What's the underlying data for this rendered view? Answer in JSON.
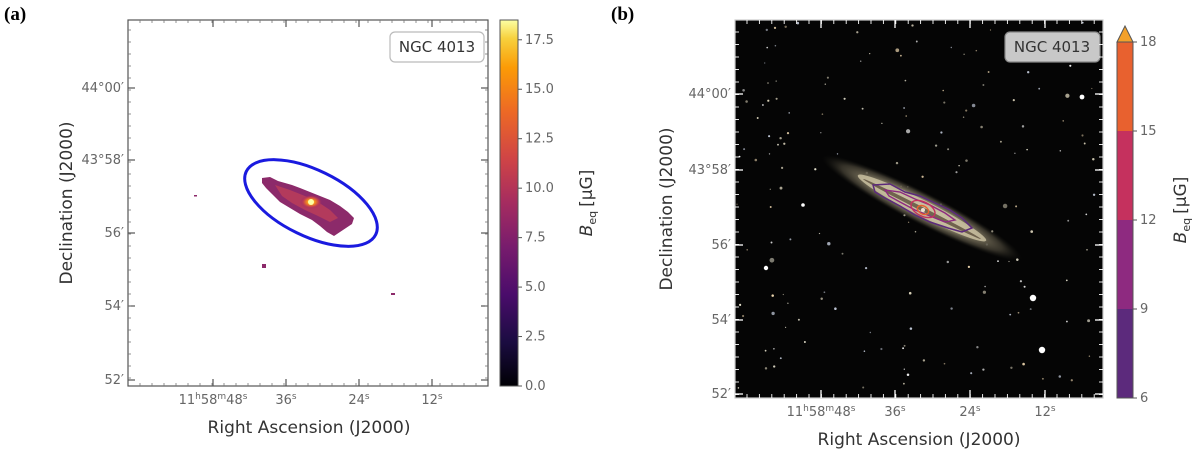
{
  "chart_data": [
    {
      "type": "image",
      "panel_label": "(a)",
      "object_label": "NGC 4013",
      "xlabel": "Right Ascension (J2000)",
      "ylabel": "Declination (J2000)",
      "x_ticks": [
        {
          "label_main": "11",
          "label_parts": [
            "h",
            "58",
            "m",
            "48",
            "s"
          ],
          "full": "11h58m48s"
        },
        {
          "label_main": "36",
          "label_parts": [
            "s"
          ],
          "full": "36s"
        },
        {
          "label_main": "24",
          "label_parts": [
            "s"
          ],
          "full": "24s"
        },
        {
          "label_main": "12",
          "label_parts": [
            "s"
          ],
          "full": "12s"
        }
      ],
      "y_ticks": [
        "44°00′",
        "43°58′",
        "56′",
        "54′",
        "52′"
      ],
      "colorbar": {
        "label": "B_eq [μG]",
        "label_main": "B",
        "label_sub": "eq",
        "label_unit": "[μG]",
        "ticks": [
          "0.0",
          "2.5",
          "5.0",
          "7.5",
          "10.0",
          "12.5",
          "15.0",
          "17.5"
        ],
        "range": [
          0,
          18.5
        ],
        "colormap": "inferno"
      },
      "overlay": "ellipse",
      "overlay_color": "#1a1adf"
    },
    {
      "type": "image",
      "panel_label": "(b)",
      "object_label": "NGC 4013",
      "xlabel": "Right Ascension (J2000)",
      "ylabel": "Declination (J2000)",
      "x_ticks": [
        {
          "label_main": "11",
          "label_parts": [
            "h",
            "58",
            "m",
            "48",
            "s"
          ],
          "full": "11h58m48s"
        },
        {
          "label_main": "36",
          "label_parts": [
            "s"
          ],
          "full": "36s"
        },
        {
          "label_main": "24",
          "label_parts": [
            "s"
          ],
          "full": "24s"
        },
        {
          "label_main": "12",
          "label_parts": [
            "s"
          ],
          "full": "12s"
        }
      ],
      "y_ticks": [
        "44°00′",
        "43°58′",
        "56′",
        "54′",
        "52′"
      ],
      "colorbar": {
        "label": "B_eq [μG]",
        "label_main": "B",
        "label_sub": "eq",
        "label_unit": "[μG]",
        "ticks": [
          "6",
          "9",
          "12",
          "15",
          "18"
        ],
        "range": [
          6,
          18
        ],
        "extend": "max",
        "levels": [
          {
            "from": 6,
            "to": 9,
            "color": "#5c2a7c"
          },
          {
            "from": 9,
            "to": 12,
            "color": "#8e2a80"
          },
          {
            "from": 12,
            "to": 15,
            "color": "#c5315e"
          },
          {
            "from": 15,
            "to": 18,
            "color": "#e8612f"
          }
        ],
        "extend_color": "#f3a12a"
      },
      "contour_levels": [
        6,
        9,
        12,
        15,
        18
      ]
    }
  ]
}
